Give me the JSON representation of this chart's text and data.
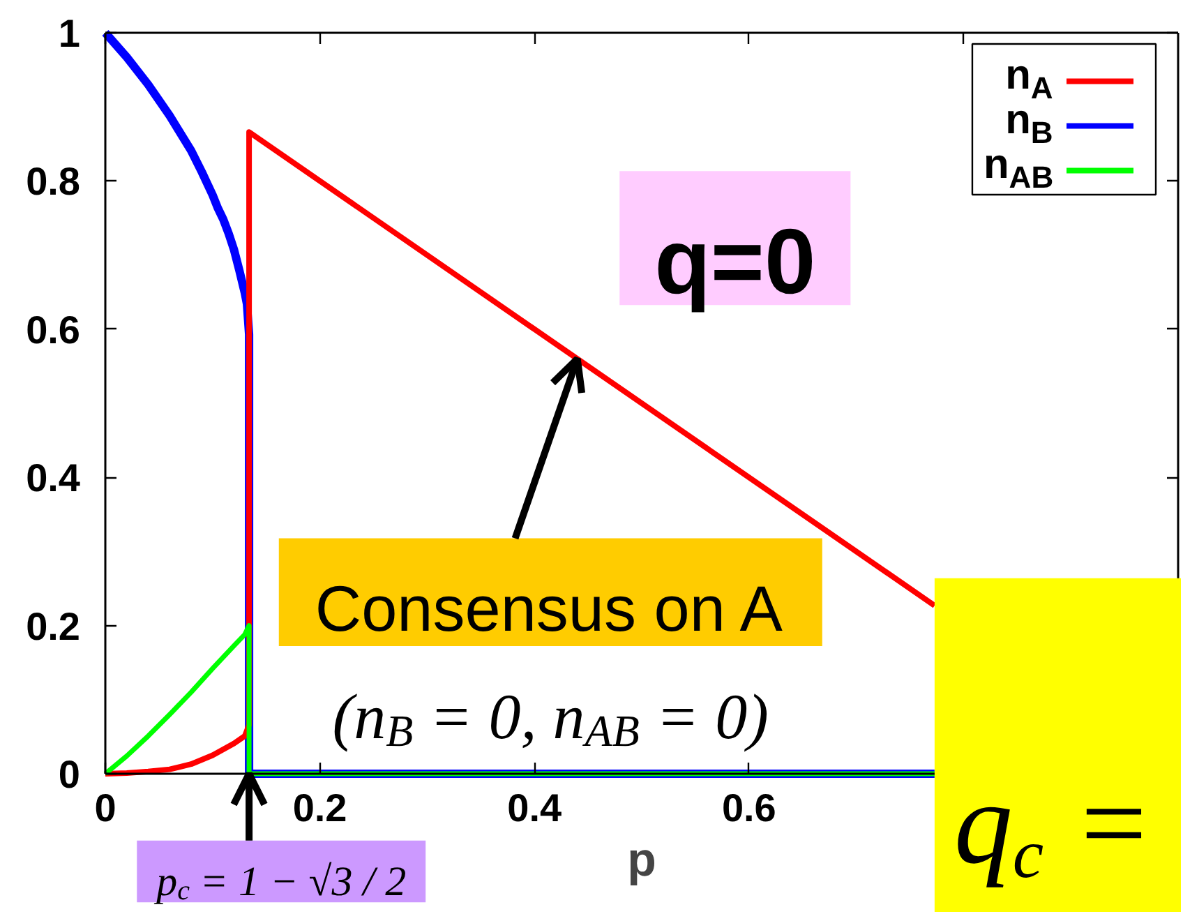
{
  "chart_data": {
    "type": "line",
    "xlabel": "p",
    "xlim": [
      0,
      1
    ],
    "ylim": [
      0,
      1
    ],
    "xticks": [
      0,
      0.2,
      0.4,
      0.6,
      {
        "value": 0.8,
        "label": null
      }
    ],
    "yticks": [
      0,
      0.2,
      0.4,
      0.6,
      0.8,
      1
    ],
    "legend": "top right",
    "series": [
      {
        "name": "n$_{A}$",
        "color": "#ff0000",
        "x": [
          0,
          0.02,
          0.04,
          0.06,
          0.08,
          0.1,
          0.12,
          0.13,
          0.134,
          0.134,
          0.773
        ],
        "values": [
          0,
          0.001,
          0.003,
          0.006,
          0.013,
          0.025,
          0.041,
          0.051,
          0.066,
          0.866,
          0.227
        ]
      },
      {
        "name": "n$_{B}$",
        "color": "#0000ff",
        "x": [
          0,
          0.02,
          0.04,
          0.06,
          0.08,
          0.09,
          0.1,
          0.105,
          0.11,
          0.115,
          0.12,
          0.125,
          0.13,
          0.132,
          0.134,
          0.134,
          0.773
        ],
        "values": [
          1,
          0.967,
          0.93,
          0.888,
          0.841,
          0.812,
          0.781,
          0.763,
          0.748,
          0.729,
          0.707,
          0.679,
          0.649,
          0.634,
          0.593,
          0,
          0
        ]
      },
      {
        "name": "n$_{AB}$",
        "color": "#00ff00",
        "x": [
          0,
          0.02,
          0.04,
          0.06,
          0.08,
          0.1,
          0.12,
          0.13,
          0.134,
          0.134,
          0.773
        ],
        "values": [
          0,
          0.024,
          0.051,
          0.08,
          0.11,
          0.142,
          0.173,
          0.188,
          0.2,
          0,
          0
        ]
      }
    ],
    "annotations": [
      "q=0",
      {
        "text": "Consensus on A",
        "x": 0.44,
        "y": 0.56
      },
      "(n$_{B}$ = 0, n$_{AB}$ = 0)",
      {
        "text": "p$_{c}$ = 1 − √3 / 2",
        "x": 0.134,
        "y": 0
      },
      "q$_{c}$ ="
    ]
  }
}
